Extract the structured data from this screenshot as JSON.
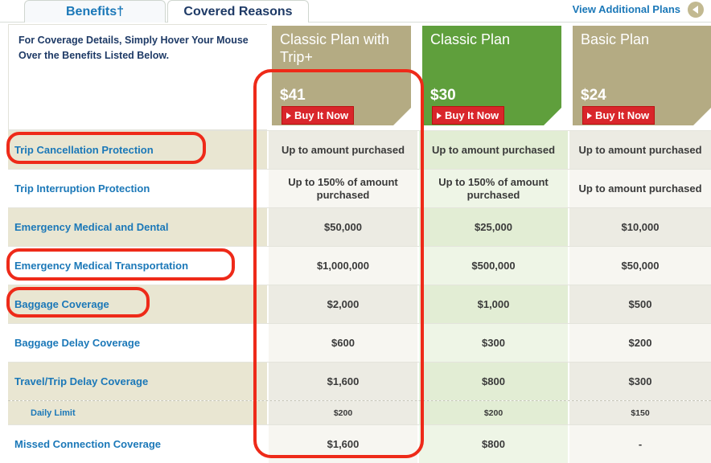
{
  "tabs": {
    "benefits": "Benefits†",
    "covered": "Covered Reasons"
  },
  "view_plans": "View Additional Plans",
  "intro": "For Coverage Details, Simply Hover Your Mouse Over the Benefits Listed Below.",
  "plans": [
    {
      "name": "Classic Plan with Trip+",
      "price": "$41",
      "buy": "Buy It Now",
      "color": "#b4ab83"
    },
    {
      "name": "Classic Plan",
      "price": "$30",
      "buy": "Buy It Now",
      "color": "#5f9f3c"
    },
    {
      "name": "Basic Plan",
      "price": "$24",
      "buy": "Buy It Now",
      "color": "#b4ab83"
    }
  ],
  "rows": [
    {
      "benefit": "Trip Cancellation Protection",
      "v1": "Up to amount purchased",
      "v2": "Up to amount purchased",
      "v3": "Up to amount purchased"
    },
    {
      "benefit": "Trip Interruption Protection",
      "v1": "Up to 150% of amount purchased",
      "v2": "Up to 150% of amount purchased",
      "v3": "Up to amount purchased"
    },
    {
      "benefit": "Emergency Medical and Dental",
      "v1": "$50,000",
      "v2": "$25,000",
      "v3": "$10,000"
    },
    {
      "benefit": "Emergency Medical Transportation",
      "v1": "$1,000,000",
      "v2": "$500,000",
      "v3": "$50,000"
    },
    {
      "benefit": "Baggage Coverage",
      "v1": "$2,000",
      "v2": "$1,000",
      "v3": "$500"
    },
    {
      "benefit": "Baggage Delay Coverage",
      "v1": "$600",
      "v2": "$300",
      "v3": "$200"
    },
    {
      "benefit": "Travel/Trip Delay Coverage",
      "v1": "$1,600",
      "v2": "$800",
      "v3": "$300"
    },
    {
      "benefit": "Daily Limit",
      "v1": "$200",
      "v2": "$200",
      "v3": "$150"
    },
    {
      "benefit": "Missed Connection Coverage",
      "v1": "$1,600",
      "v2": "$800",
      "v3": "-"
    }
  ],
  "highlight_color": "#ee2a19"
}
